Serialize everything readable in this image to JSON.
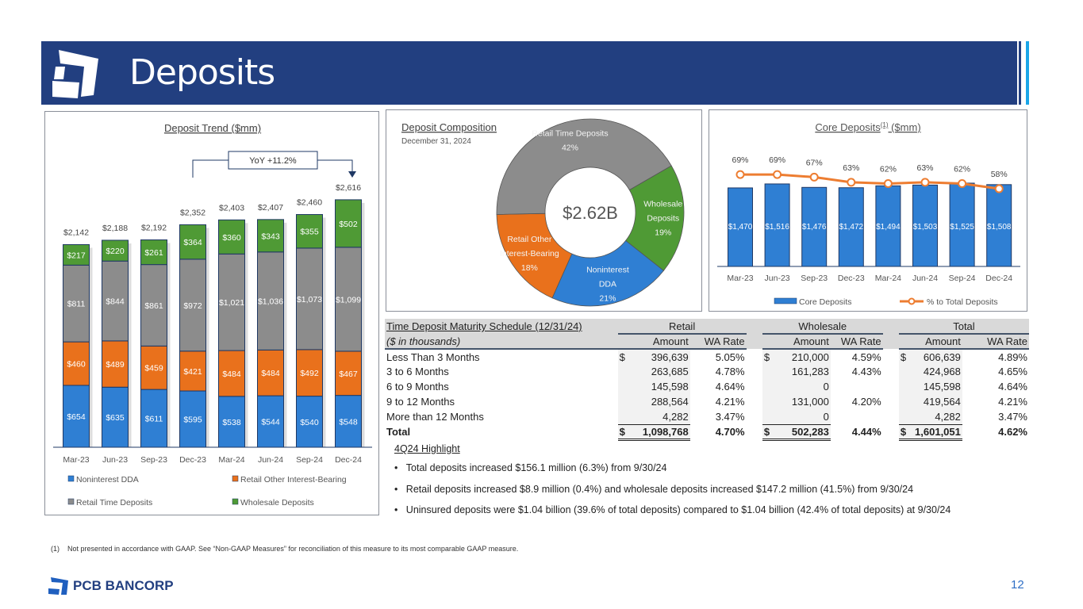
{
  "header": {
    "title": "Deposits"
  },
  "deposit_trend": {
    "title": "Deposit Trend ($mm)",
    "annotation": "YoY +11.2%"
  },
  "deposit_composition": {
    "title": "Deposit Composition",
    "subtitle": "December 31, 2024",
    "center_label": "$2.62B"
  },
  "core_deposits": {
    "title": "Core Deposits",
    "title_sup": "(1)",
    "title_suffix": " ($mm)"
  },
  "chart_data": [
    {
      "type": "bar",
      "stacked": true,
      "title": "Deposit Trend ($mm)",
      "categories": [
        "Mar-23",
        "Jun-23",
        "Sep-23",
        "Dec-23",
        "Mar-24",
        "Jun-24",
        "Sep-24",
        "Dec-24"
      ],
      "series": [
        {
          "name": "Noninterest DDA",
          "color": "#2f7fd3",
          "values": [
            654,
            635,
            611,
            595,
            538,
            544,
            540,
            548
          ],
          "labels": [
            "$654",
            "$635",
            "$611",
            "$595",
            "$538",
            "$544",
            "$540",
            "$548"
          ]
        },
        {
          "name": "Retail Other Interest-Bearing",
          "color": "#e9711c",
          "values": [
            460,
            489,
            459,
            421,
            484,
            484,
            492,
            467
          ],
          "labels": [
            "$460",
            "$489",
            "$459",
            "$421",
            "$484",
            "$484",
            "$492",
            "$467"
          ]
        },
        {
          "name": "Retail Time Deposits",
          "color": "#8c8c8c",
          "values": [
            811,
            844,
            861,
            972,
            1021,
            1036,
            1073,
            1099
          ],
          "labels": [
            "$811",
            "$844",
            "$861",
            "$972",
            "$1,021",
            "$1,036",
            "$1,073",
            "$1,099"
          ]
        },
        {
          "name": "Wholesale Deposits",
          "color": "#4f9a35",
          "values": [
            217,
            220,
            261,
            364,
            360,
            343,
            355,
            502
          ],
          "labels": [
            "$217",
            "$220",
            "$261",
            "$364",
            "$360",
            "$343",
            "$355",
            "$502"
          ]
        }
      ],
      "totals": [
        "$2,142",
        "$2,188",
        "$2,192",
        "$2,352",
        "$2,403",
        "$2,407",
        "$2,460",
        "$2,616"
      ],
      "legend": "bottom",
      "ylim": [
        0,
        2616
      ]
    },
    {
      "type": "pie",
      "donut": true,
      "title": "Deposit Composition",
      "slices": [
        {
          "name": "Wholesale Deposits",
          "lines": [
            "Wholesale",
            "Deposits",
            "19%"
          ],
          "value": 19,
          "color": "#4f9a35"
        },
        {
          "name": "Noninterest DDA",
          "lines": [
            "Noninterest",
            "DDA",
            "21%"
          ],
          "value": 21,
          "color": "#2f7fd3"
        },
        {
          "name": "Retail Other Interest-Bearing",
          "lines": [
            "Retail Other",
            "Interest-Bearing",
            "18%"
          ],
          "value": 18,
          "color": "#e9711c"
        },
        {
          "name": "Retail Time Deposits",
          "lines": [
            "Retail Time Deposits",
            "42%"
          ],
          "value": 42,
          "color": "#8c8c8c"
        }
      ]
    },
    {
      "type": "bar+line",
      "title": "Core Deposits(1) ($mm)",
      "categories": [
        "Mar-23",
        "Jun-23",
        "Sep-23",
        "Dec-23",
        "Mar-24",
        "Jun-24",
        "Sep-24",
        "Dec-24"
      ],
      "bars": {
        "name": "Core Deposits",
        "color": "#2f7fd3",
        "values": [
          1470,
          1516,
          1476,
          1472,
          1494,
          1503,
          1525,
          1508
        ],
        "labels": [
          "$1,470",
          "$1,516",
          "$1,476",
          "$1,472",
          "$1,494",
          "$1,503",
          "$1,525",
          "$1,508"
        ]
      },
      "line": {
        "name": "% to Total Deposits",
        "color": "#ed7d31",
        "values": [
          69,
          69,
          67,
          63,
          62,
          63,
          62,
          58
        ],
        "labels": [
          "69%",
          "69%",
          "67%",
          "63%",
          "62%",
          "63%",
          "62%",
          "58%"
        ]
      },
      "ylim": [
        560,
        2030
      ],
      "y2lim": [
        -2,
        96
      ],
      "legend": "bottom"
    }
  ],
  "table": {
    "title": "Time Deposit Maturity Schedule (12/31/24)",
    "units": "($ in thousands)",
    "groups": [
      "Retail",
      "Wholesale",
      "Total"
    ],
    "col_amount": "Amount",
    "col_rate": "WA Rate",
    "rows": [
      {
        "label": "Less Than 3 Months",
        "ra": "396,639",
        "rr": "5.05%",
        "wa": "210,000",
        "wr": "4.59%",
        "ta": "606,639",
        "tr": "4.89%",
        "dollar": "$"
      },
      {
        "label": "3 to 6 Months",
        "ra": "263,685",
        "rr": "4.78%",
        "wa": "161,283",
        "wr": "4.43%",
        "ta": "424,968",
        "tr": "4.65%"
      },
      {
        "label": "6 to 9 Months",
        "ra": "145,598",
        "rr": "4.64%",
        "wa": "0",
        "wr": "",
        "ta": "145,598",
        "tr": "4.64%"
      },
      {
        "label": "9 to 12 Months",
        "ra": "288,564",
        "rr": "4.21%",
        "wa": "131,000",
        "wr": "4.20%",
        "ta": "419,564",
        "tr": "4.21%"
      },
      {
        "label": "More than 12 Months",
        "ra": "4,282",
        "rr": "3.47%",
        "wa": "0",
        "wr": "",
        "ta": "4,282",
        "tr": "3.47%"
      }
    ],
    "total": {
      "label": "Total",
      "ra": "1,098,768",
      "rr": "4.70%",
      "wa": "502,283",
      "wr": "4.44%",
      "ta": "1,601,051",
      "tr": "4.62%",
      "dollar": "$"
    }
  },
  "highlights": {
    "title": "4Q24 Highlight",
    "items": [
      "Total deposits increased $156.1 million (6.3%) from 9/30/24",
      "Retail deposits increased $8.9 million (0.4%) and wholesale deposits increased $147.2 million (41.5%) from 9/30/24",
      "Uninsured deposits were $1.04 billion (39.6% of total deposits) compared to $1.04 billion (42.4% of total deposits) at 9/30/24"
    ]
  },
  "footnote": {
    "marker": "(1)",
    "text": "Not presented in accordance with GAAP. See “Non-GAAP Measures” for reconciliation of this measure to its most comparable GAAP measure."
  },
  "footer": {
    "logo_text": "PCB BANCORP",
    "page_number": "12"
  },
  "colors": {
    "header": "#223f80",
    "accent": "#1aa6e8"
  }
}
